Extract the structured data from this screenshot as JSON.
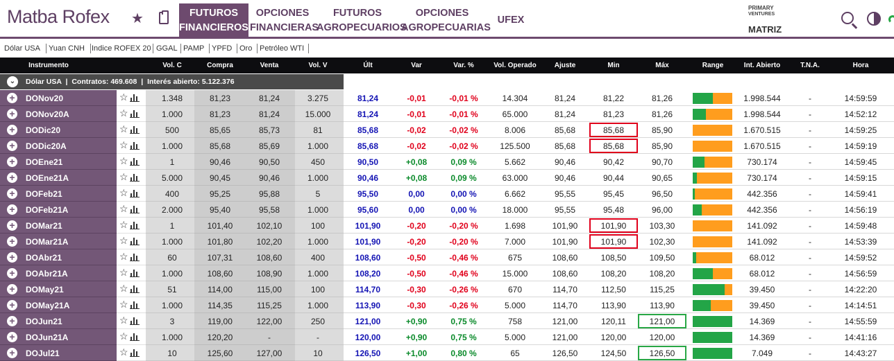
{
  "app": {
    "logo": "Matba Rofex",
    "nav": [
      {
        "line1": "FUTUROS",
        "line2": "FINANCIEROS",
        "active": true
      },
      {
        "line1": "OPCIONES",
        "line2": "FINANCIERAS",
        "active": false
      },
      {
        "line1": "FUTUROS",
        "line2": "AGROPECUARIOS",
        "active": false
      },
      {
        "line1": "OPCIONES",
        "line2": "AGROPECUARIAS",
        "active": false
      },
      {
        "line1": "UFEX",
        "line2": "",
        "active": false
      }
    ],
    "partners": {
      "primary_line1": "PRIMARY",
      "primary_line2": "VENTURES",
      "matriz": "MATRIZ"
    }
  },
  "tickers": [
    "Dólar USA",
    "Yuan CNH",
    "Indice ROFEX 20",
    "GGAL",
    "PAMP",
    "YPFD",
    "Oro",
    "Petróleo WTI"
  ],
  "columns": [
    "Instrumento",
    "Vol. C",
    "Compra",
    "Venta",
    "Vol. V",
    "Últ",
    "Var",
    "Var. %",
    "Vol. Operado",
    "Ajuste",
    "Min",
    "Máx",
    "Range",
    "Int. Abierto",
    "T.N.A.",
    "Hora"
  ],
  "group": {
    "name": "Dólar USA",
    "contratos": "Contratos: 469.608",
    "interes": "Interés abierto: 5.122.376"
  },
  "rows": [
    {
      "name": "DONov20",
      "volc": "1.348",
      "compra": "81,23",
      "venta": "81,24",
      "volv": "3.275",
      "ult": "81,24",
      "var": "-0,01",
      "varp": "-0,01 %",
      "volop": "14.304",
      "ajuste": "81,24",
      "min": "81,22",
      "max": "81,26",
      "range": 0.5,
      "intab": "1.998.544",
      "tna": "-",
      "hora": "14:59:59",
      "trend": "down",
      "minbox": "",
      "maxbox": ""
    },
    {
      "name": "DONov20A",
      "volc": "1.000",
      "compra": "81,23",
      "venta": "81,24",
      "volv": "15.000",
      "ult": "81,24",
      "var": "-0,01",
      "varp": "-0,01 %",
      "volop": "65.000",
      "ajuste": "81,24",
      "min": "81,23",
      "max": "81,26",
      "range": 0.33,
      "intab": "1.998.544",
      "tna": "-",
      "hora": "14:52:12",
      "trend": "down",
      "minbox": "",
      "maxbox": ""
    },
    {
      "name": "DODic20",
      "volc": "500",
      "compra": "85,65",
      "venta": "85,73",
      "volv": "81",
      "ult": "85,68",
      "var": "-0,02",
      "varp": "-0,02 %",
      "volop": "8.006",
      "ajuste": "85,68",
      "min": "85,68",
      "max": "85,90",
      "range": 0.0,
      "intab": "1.670.515",
      "tna": "-",
      "hora": "14:59:25",
      "trend": "down",
      "minbox": "red",
      "maxbox": ""
    },
    {
      "name": "DODic20A",
      "volc": "1.000",
      "compra": "85,68",
      "venta": "85,69",
      "volv": "1.000",
      "ult": "85,68",
      "var": "-0,02",
      "varp": "-0,02 %",
      "volop": "125.500",
      "ajuste": "85,68",
      "min": "85,68",
      "max": "85,90",
      "range": 0.0,
      "intab": "1.670.515",
      "tna": "-",
      "hora": "14:59:19",
      "trend": "down",
      "minbox": "red",
      "maxbox": ""
    },
    {
      "name": "DOEne21",
      "volc": "1",
      "compra": "90,46",
      "venta": "90,50",
      "volv": "450",
      "ult": "90,50",
      "var": "+0,08",
      "varp": "0,09 %",
      "volop": "5.662",
      "ajuste": "90,46",
      "min": "90,42",
      "max": "90,70",
      "range": 0.29,
      "intab": "730.174",
      "tna": "-",
      "hora": "14:59:45",
      "trend": "up",
      "minbox": "",
      "maxbox": ""
    },
    {
      "name": "DOEne21A",
      "volc": "5.000",
      "compra": "90,45",
      "venta": "90,46",
      "volv": "1.000",
      "ult": "90,46",
      "var": "+0,08",
      "varp": "0,09 %",
      "volop": "63.000",
      "ajuste": "90,46",
      "min": "90,44",
      "max": "90,65",
      "range": 0.1,
      "intab": "730.174",
      "tna": "-",
      "hora": "14:59:15",
      "trend": "up",
      "minbox": "",
      "maxbox": ""
    },
    {
      "name": "DOFeb21",
      "volc": "400",
      "compra": "95,25",
      "venta": "95,88",
      "volv": "5",
      "ult": "95,50",
      "var": "0,00",
      "varp": "0,00 %",
      "volop": "6.662",
      "ajuste": "95,55",
      "min": "95,45",
      "max": "96,50",
      "range": 0.05,
      "intab": "442.356",
      "tna": "-",
      "hora": "14:59:41",
      "trend": "flat",
      "minbox": "",
      "maxbox": ""
    },
    {
      "name": "DOFeb21A",
      "volc": "2.000",
      "compra": "95,40",
      "venta": "95,58",
      "volv": "1.000",
      "ult": "95,60",
      "var": "0,00",
      "varp": "0,00 %",
      "volop": "18.000",
      "ajuste": "95,55",
      "min": "95,48",
      "max": "96,00",
      "range": 0.23,
      "intab": "442.356",
      "tna": "-",
      "hora": "14:56:19",
      "trend": "flat",
      "minbox": "",
      "maxbox": ""
    },
    {
      "name": "DOMar21",
      "volc": "1",
      "compra": "101,40",
      "venta": "102,10",
      "volv": "100",
      "ult": "101,90",
      "var": "-0,20",
      "varp": "-0,20 %",
      "volop": "1.698",
      "ajuste": "101,90",
      "min": "101,90",
      "max": "103,30",
      "range": 0.0,
      "intab": "141.092",
      "tna": "-",
      "hora": "14:59:48",
      "trend": "down",
      "minbox": "red",
      "maxbox": ""
    },
    {
      "name": "DOMar21A",
      "volc": "1.000",
      "compra": "101,80",
      "venta": "102,20",
      "volv": "1.000",
      "ult": "101,90",
      "var": "-0,20",
      "varp": "-0,20 %",
      "volop": "7.000",
      "ajuste": "101,90",
      "min": "101,90",
      "max": "102,30",
      "range": 0.0,
      "intab": "141.092",
      "tna": "-",
      "hora": "14:53:39",
      "trend": "down",
      "minbox": "red",
      "maxbox": ""
    },
    {
      "name": "DOAbr21",
      "volc": "60",
      "compra": "107,31",
      "venta": "108,60",
      "volv": "400",
      "ult": "108,60",
      "var": "-0,50",
      "varp": "-0,46 %",
      "volop": "675",
      "ajuste": "108,60",
      "min": "108,50",
      "max": "109,50",
      "range": 0.09,
      "intab": "68.012",
      "tna": "-",
      "hora": "14:59:52",
      "trend": "down",
      "minbox": "",
      "maxbox": ""
    },
    {
      "name": "DOAbr21A",
      "volc": "1.000",
      "compra": "108,60",
      "venta": "108,90",
      "volv": "1.000",
      "ult": "108,20",
      "var": "-0,50",
      "varp": "-0,46 %",
      "volop": "15.000",
      "ajuste": "108,60",
      "min": "108,20",
      "max": "108,20",
      "range": 0.5,
      "intab": "68.012",
      "tna": "-",
      "hora": "14:56:59",
      "trend": "down",
      "minbox": "",
      "maxbox": ""
    },
    {
      "name": "DOMay21",
      "volc": "51",
      "compra": "114,00",
      "venta": "115,00",
      "volv": "100",
      "ult": "114,70",
      "var": "-0,30",
      "varp": "-0,26 %",
      "volop": "670",
      "ajuste": "114,70",
      "min": "112,50",
      "max": "115,25",
      "range": 0.8,
      "intab": "39.450",
      "tna": "-",
      "hora": "14:22:20",
      "trend": "down",
      "minbox": "",
      "maxbox": ""
    },
    {
      "name": "DOMay21A",
      "volc": "1.000",
      "compra": "114,35",
      "venta": "115,25",
      "volv": "1.000",
      "ult": "113,90",
      "var": "-0,30",
      "varp": "-0,26 %",
      "volop": "5.000",
      "ajuste": "114,70",
      "min": "113,90",
      "max": "113,90",
      "range": 0.45,
      "intab": "39.450",
      "tna": "-",
      "hora": "14:14:51",
      "trend": "down",
      "minbox": "",
      "maxbox": ""
    },
    {
      "name": "DOJun21",
      "volc": "3",
      "compra": "119,00",
      "venta": "122,00",
      "volv": "250",
      "ult": "121,00",
      "var": "+0,90",
      "varp": "0,75 %",
      "volop": "758",
      "ajuste": "121,00",
      "min": "120,11",
      "max": "121,00",
      "range": 1.0,
      "intab": "14.369",
      "tna": "-",
      "hora": "14:55:59",
      "trend": "up",
      "minbox": "",
      "maxbox": "green"
    },
    {
      "name": "DOJun21A",
      "volc": "1.000",
      "compra": "120,20",
      "venta": "-",
      "volv": "-",
      "ult": "120,00",
      "var": "+0,90",
      "varp": "0,75 %",
      "volop": "5.000",
      "ajuste": "121,00",
      "min": "120,00",
      "max": "120,00",
      "range": 1.0,
      "intab": "14.369",
      "tna": "-",
      "hora": "14:41:16",
      "trend": "up",
      "minbox": "",
      "maxbox": ""
    },
    {
      "name": "DOJul21",
      "volc": "10",
      "compra": "125,60",
      "venta": "127,00",
      "volv": "10",
      "ult": "126,50",
      "var": "+1,00",
      "varp": "0,80 %",
      "volop": "65",
      "ajuste": "126,50",
      "min": "124,50",
      "max": "126,50",
      "range": 1.0,
      "intab": "7.049",
      "tna": "-",
      "hora": "14:43:27",
      "trend": "up",
      "minbox": "",
      "maxbox": "green"
    }
  ],
  "colors": {
    "brand": "#6d4a6e",
    "up": "#0a8a2a",
    "down": "#e0001b",
    "ult": "#1414b4",
    "range_fill": "#23a547",
    "range_bg": "#ff9d1e"
  }
}
